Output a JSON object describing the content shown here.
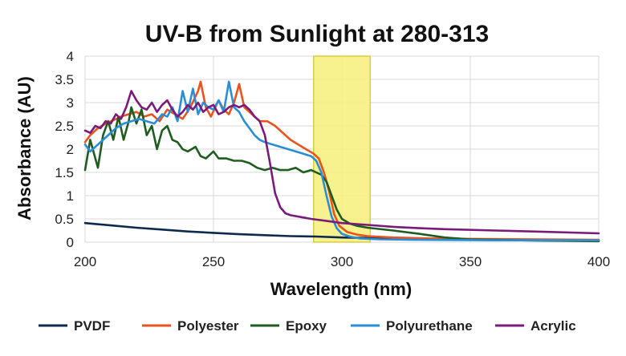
{
  "chart_data": {
    "type": "line",
    "title": "UV-B from Sunlight at 280-313",
    "xlabel": "Wavelength (nm)",
    "ylabel": "Absorbance (AU)",
    "xlim": [
      200,
      400
    ],
    "ylim": [
      0,
      4
    ],
    "xticks": [
      200,
      250,
      300,
      350,
      400
    ],
    "yticks": [
      0,
      0.5,
      1,
      1.5,
      2,
      2.5,
      3,
      3.5,
      4
    ],
    "xtick_labels": [
      "200",
      "250",
      "300",
      "350",
      "400"
    ],
    "ytick_labels": [
      "0",
      "0.5",
      "1",
      "1.5",
      "2",
      "2.5",
      "3",
      "3.5",
      "4"
    ],
    "grid": true,
    "legend_position": "bottom",
    "highlight_band": {
      "x_start": 289,
      "x_end": 311,
      "color": "#f7f07a"
    },
    "series": [
      {
        "name": "PVDF",
        "color": "#0d2a4e",
        "points": [
          [
            200,
            0.41
          ],
          [
            210,
            0.36
          ],
          [
            220,
            0.31
          ],
          [
            230,
            0.27
          ],
          [
            240,
            0.23
          ],
          [
            250,
            0.2
          ],
          [
            260,
            0.17
          ],
          [
            270,
            0.15
          ],
          [
            280,
            0.13
          ],
          [
            290,
            0.12
          ],
          [
            300,
            0.1
          ],
          [
            310,
            0.09
          ],
          [
            320,
            0.08
          ],
          [
            330,
            0.07
          ],
          [
            340,
            0.06
          ],
          [
            350,
            0.05
          ],
          [
            370,
            0.04
          ],
          [
            400,
            0.03
          ]
        ]
      },
      {
        "name": "Polyester",
        "color": "#e8541e",
        "points": [
          [
            200,
            2.15
          ],
          [
            202,
            2.3
          ],
          [
            205,
            2.45
          ],
          [
            208,
            2.55
          ],
          [
            211,
            2.62
          ],
          [
            214,
            2.7
          ],
          [
            217,
            2.75
          ],
          [
            220,
            2.8
          ],
          [
            223,
            2.7
          ],
          [
            226,
            2.75
          ],
          [
            229,
            2.6
          ],
          [
            232,
            2.85
          ],
          [
            235,
            2.75
          ],
          [
            238,
            2.65
          ],
          [
            241,
            2.9
          ],
          [
            244,
            3.25
          ],
          [
            245,
            3.45
          ],
          [
            247,
            2.9
          ],
          [
            249,
            2.7
          ],
          [
            252,
            3.05
          ],
          [
            254,
            2.85
          ],
          [
            256,
            2.75
          ],
          [
            258,
            3.0
          ],
          [
            260,
            3.4
          ],
          [
            262,
            2.9
          ],
          [
            265,
            2.75
          ],
          [
            268,
            2.6
          ],
          [
            271,
            2.6
          ],
          [
            274,
            2.5
          ],
          [
            277,
            2.35
          ],
          [
            280,
            2.2
          ],
          [
            283,
            2.1
          ],
          [
            286,
            2.0
          ],
          [
            289,
            1.9
          ],
          [
            291,
            1.8
          ],
          [
            293,
            1.5
          ],
          [
            295,
            1.1
          ],
          [
            297,
            0.6
          ],
          [
            299,
            0.35
          ],
          [
            302,
            0.22
          ],
          [
            306,
            0.16
          ],
          [
            310,
            0.13
          ],
          [
            320,
            0.1
          ],
          [
            335,
            0.08
          ],
          [
            350,
            0.07
          ],
          [
            400,
            0.05
          ]
        ]
      },
      {
        "name": "Epoxy",
        "color": "#1f5c1f",
        "points": [
          [
            200,
            1.55
          ],
          [
            202,
            2.2
          ],
          [
            204,
            1.8
          ],
          [
            205,
            1.6
          ],
          [
            207,
            2.3
          ],
          [
            209,
            2.6
          ],
          [
            211,
            2.2
          ],
          [
            213,
            2.7
          ],
          [
            215,
            2.2
          ],
          [
            217,
            2.6
          ],
          [
            218,
            2.9
          ],
          [
            220,
            2.55
          ],
          [
            222,
            2.85
          ],
          [
            224,
            2.3
          ],
          [
            226,
            2.5
          ],
          [
            228,
            2.0
          ],
          [
            230,
            2.4
          ],
          [
            232,
            2.5
          ],
          [
            234,
            2.2
          ],
          [
            236,
            2.15
          ],
          [
            238,
            2.0
          ],
          [
            240,
            1.95
          ],
          [
            243,
            2.05
          ],
          [
            245,
            1.85
          ],
          [
            247,
            1.8
          ],
          [
            250,
            1.95
          ],
          [
            252,
            1.8
          ],
          [
            255,
            1.8
          ],
          [
            258,
            1.75
          ],
          [
            261,
            1.75
          ],
          [
            264,
            1.7
          ],
          [
            267,
            1.6
          ],
          [
            270,
            1.55
          ],
          [
            273,
            1.6
          ],
          [
            276,
            1.55
          ],
          [
            279,
            1.55
          ],
          [
            282,
            1.6
          ],
          [
            285,
            1.5
          ],
          [
            288,
            1.55
          ],
          [
            290,
            1.5
          ],
          [
            292,
            1.45
          ],
          [
            294,
            1.3
          ],
          [
            296,
            1.0
          ],
          [
            298,
            0.7
          ],
          [
            300,
            0.5
          ],
          [
            303,
            0.4
          ],
          [
            306,
            0.35
          ],
          [
            310,
            0.31
          ],
          [
            320,
            0.25
          ],
          [
            330,
            0.18
          ],
          [
            340,
            0.1
          ],
          [
            350,
            0.06
          ],
          [
            370,
            0.04
          ],
          [
            400,
            0.02
          ]
        ]
      },
      {
        "name": "Polyurethane",
        "color": "#2a8ed6",
        "points": [
          [
            200,
            2.1
          ],
          [
            202,
            1.95
          ],
          [
            204,
            2.05
          ],
          [
            206,
            2.15
          ],
          [
            209,
            2.3
          ],
          [
            212,
            2.45
          ],
          [
            215,
            2.55
          ],
          [
            218,
            2.6
          ],
          [
            221,
            2.65
          ],
          [
            224,
            2.6
          ],
          [
            227,
            2.55
          ],
          [
            230,
            2.75
          ],
          [
            232,
            2.7
          ],
          [
            234,
            2.9
          ],
          [
            236,
            2.6
          ],
          [
            238,
            3.25
          ],
          [
            240,
            2.8
          ],
          [
            242,
            3.3
          ],
          [
            244,
            2.75
          ],
          [
            246,
            3.0
          ],
          [
            248,
            2.9
          ],
          [
            250,
            2.85
          ],
          [
            252,
            3.05
          ],
          [
            254,
            2.8
          ],
          [
            256,
            3.45
          ],
          [
            258,
            2.9
          ],
          [
            260,
            2.8
          ],
          [
            262,
            2.6
          ],
          [
            264,
            2.45
          ],
          [
            266,
            2.3
          ],
          [
            268,
            2.2
          ],
          [
            270,
            2.15
          ],
          [
            273,
            2.1
          ],
          [
            276,
            2.05
          ],
          [
            279,
            2.0
          ],
          [
            282,
            1.95
          ],
          [
            285,
            1.9
          ],
          [
            288,
            1.85
          ],
          [
            290,
            1.75
          ],
          [
            292,
            1.5
          ],
          [
            294,
            1.0
          ],
          [
            296,
            0.55
          ],
          [
            298,
            0.3
          ],
          [
            300,
            0.18
          ],
          [
            303,
            0.12
          ],
          [
            307,
            0.08
          ],
          [
            315,
            0.06
          ],
          [
            330,
            0.05
          ],
          [
            360,
            0.04
          ],
          [
            400,
            0.04
          ]
        ]
      },
      {
        "name": "Acrylic",
        "color": "#7a1a7a",
        "points": [
          [
            200,
            2.4
          ],
          [
            202,
            2.35
          ],
          [
            204,
            2.5
          ],
          [
            206,
            2.45
          ],
          [
            208,
            2.6
          ],
          [
            210,
            2.55
          ],
          [
            212,
            2.75
          ],
          [
            214,
            2.65
          ],
          [
            216,
            2.9
          ],
          [
            218,
            3.25
          ],
          [
            220,
            3.05
          ],
          [
            222,
            2.9
          ],
          [
            224,
            2.85
          ],
          [
            226,
            3.0
          ],
          [
            228,
            2.8
          ],
          [
            230,
            2.95
          ],
          [
            232,
            3.05
          ],
          [
            234,
            2.85
          ],
          [
            236,
            2.7
          ],
          [
            238,
            2.8
          ],
          [
            240,
            2.95
          ],
          [
            242,
            2.85
          ],
          [
            244,
            3.0
          ],
          [
            246,
            2.8
          ],
          [
            248,
            2.9
          ],
          [
            250,
            2.95
          ],
          [
            252,
            2.75
          ],
          [
            254,
            2.8
          ],
          [
            256,
            2.9
          ],
          [
            258,
            2.95
          ],
          [
            260,
            2.9
          ],
          [
            262,
            2.95
          ],
          [
            264,
            2.85
          ],
          [
            266,
            2.7
          ],
          [
            268,
            2.6
          ],
          [
            270,
            2.3
          ],
          [
            272,
            1.7
          ],
          [
            274,
            1.05
          ],
          [
            276,
            0.75
          ],
          [
            278,
            0.62
          ],
          [
            280,
            0.58
          ],
          [
            284,
            0.54
          ],
          [
            288,
            0.5
          ],
          [
            295,
            0.45
          ],
          [
            300,
            0.41
          ],
          [
            310,
            0.37
          ],
          [
            320,
            0.33
          ],
          [
            330,
            0.3
          ],
          [
            340,
            0.28
          ],
          [
            360,
            0.25
          ],
          [
            380,
            0.22
          ],
          [
            400,
            0.19
          ]
        ]
      }
    ]
  }
}
